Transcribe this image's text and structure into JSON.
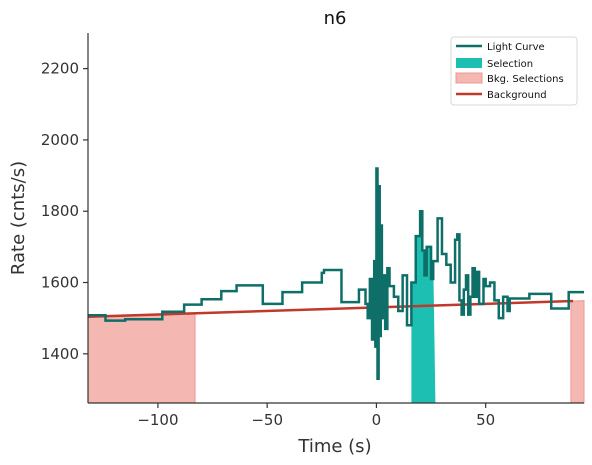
{
  "chart_data": {
    "type": "line",
    "title": "n6",
    "xlabel": "Time (s)",
    "ylabel": "Rate (cnts/s)",
    "xlim": [
      -132,
      95
    ],
    "ylim": [
      1262,
      2300
    ],
    "xticks": [
      -100,
      -50,
      0,
      50
    ],
    "yticks": [
      1400,
      1600,
      1800,
      2000,
      2200
    ],
    "xtick_labels": [
      "−100",
      "−50",
      "0",
      "50"
    ],
    "ytick_labels": [
      "1400",
      "1600",
      "1800",
      "2000",
      "2200"
    ],
    "legend": {
      "placement": "top-right",
      "entries": [
        "Light Curve",
        "Selection",
        "Bkg. Selections",
        "Background"
      ]
    },
    "colors": {
      "light_curve": "#0e6e68",
      "selection": "#1dbfb2",
      "bkg_selection_fill": "#f5b7b1",
      "bkg_selection_edge": "#ec9a93",
      "background": "#c0392b",
      "axis": "#333333"
    },
    "grid": false,
    "series": [
      {
        "name": "Light Curve",
        "kind": "step",
        "points": [
          [
            -132,
            1508
          ],
          [
            -124,
            1508
          ],
          [
            -124,
            1493
          ],
          [
            -115,
            1493
          ],
          [
            -115,
            1497
          ],
          [
            -98,
            1497
          ],
          [
            -98,
            1518
          ],
          [
            -88,
            1518
          ],
          [
            -88,
            1538
          ],
          [
            -80,
            1538
          ],
          [
            -80,
            1553
          ],
          [
            -71,
            1553
          ],
          [
            -71,
            1576
          ],
          [
            -64,
            1576
          ],
          [
            -64,
            1592
          ],
          [
            -52,
            1592
          ],
          [
            -52,
            1540
          ],
          [
            -43,
            1540
          ],
          [
            -43,
            1573
          ],
          [
            -34,
            1573
          ],
          [
            -34,
            1600
          ],
          [
            -25,
            1600
          ],
          [
            -25,
            1627
          ],
          [
            -24,
            1627
          ],
          [
            -24,
            1635
          ],
          [
            -16,
            1635
          ],
          [
            -16,
            1545
          ],
          [
            -8,
            1545
          ],
          [
            -8,
            1580
          ],
          [
            -5,
            1580
          ],
          [
            -5,
            1540
          ],
          [
            -4,
            1540
          ],
          [
            -4,
            1500
          ],
          [
            -3,
            1500
          ],
          [
            -3,
            1610
          ],
          [
            -2,
            1610
          ],
          [
            -2,
            1440
          ],
          [
            -1,
            1440
          ],
          [
            -1,
            1660
          ],
          [
            -0.5,
            1660
          ],
          [
            -0.5,
            1420
          ],
          [
            0,
            1420
          ],
          [
            0,
            1920
          ],
          [
            0.5,
            1920
          ],
          [
            0.5,
            1330
          ],
          [
            1,
            1330
          ],
          [
            1,
            1870
          ],
          [
            1.5,
            1870
          ],
          [
            1.5,
            1450
          ],
          [
            2,
            1450
          ],
          [
            2,
            1760
          ],
          [
            2.5,
            1760
          ],
          [
            2.5,
            1500
          ],
          [
            3,
            1500
          ],
          [
            3,
            1620
          ],
          [
            4,
            1620
          ],
          [
            4,
            1470
          ],
          [
            5,
            1470
          ],
          [
            5,
            1640
          ],
          [
            6,
            1640
          ],
          [
            6,
            1590
          ],
          [
            8,
            1590
          ],
          [
            8,
            1560
          ],
          [
            10,
            1560
          ],
          [
            10,
            1520
          ],
          [
            12,
            1520
          ],
          [
            12,
            1620
          ],
          [
            14,
            1620
          ],
          [
            14,
            1480
          ],
          [
            16,
            1480
          ],
          [
            16,
            1600
          ],
          [
            18,
            1600
          ],
          [
            18,
            1730
          ],
          [
            20,
            1730
          ],
          [
            20,
            1800
          ],
          [
            21,
            1800
          ],
          [
            21,
            1690
          ],
          [
            22,
            1690
          ],
          [
            22,
            1620
          ],
          [
            23,
            1620
          ],
          [
            23,
            1700
          ],
          [
            25,
            1700
          ],
          [
            25,
            1610
          ],
          [
            26,
            1610
          ],
          [
            26,
            1660
          ],
          [
            28,
            1660
          ],
          [
            28,
            1780
          ],
          [
            30,
            1780
          ],
          [
            30,
            1680
          ],
          [
            32,
            1680
          ],
          [
            32,
            1650
          ],
          [
            34,
            1650
          ],
          [
            34,
            1600
          ],
          [
            36,
            1600
          ],
          [
            36,
            1720
          ],
          [
            37,
            1720
          ],
          [
            37,
            1735
          ],
          [
            38,
            1735
          ],
          [
            38,
            1550
          ],
          [
            39,
            1550
          ],
          [
            39,
            1510
          ],
          [
            40,
            1510
          ],
          [
            40,
            1580
          ],
          [
            41,
            1580
          ],
          [
            41,
            1620
          ],
          [
            42,
            1620
          ],
          [
            42,
            1510
          ],
          [
            43,
            1510
          ],
          [
            43,
            1560
          ],
          [
            44,
            1560
          ],
          [
            44,
            1640
          ],
          [
            45,
            1640
          ],
          [
            45,
            1560
          ],
          [
            46,
            1560
          ],
          [
            46,
            1630
          ],
          [
            47,
            1630
          ],
          [
            47,
            1540
          ],
          [
            49,
            1540
          ],
          [
            49,
            1610
          ],
          [
            50,
            1610
          ],
          [
            50,
            1590
          ],
          [
            52,
            1590
          ],
          [
            52,
            1600
          ],
          [
            54,
            1600
          ],
          [
            54,
            1550
          ],
          [
            56,
            1550
          ],
          [
            56,
            1500
          ],
          [
            58,
            1500
          ],
          [
            58,
            1560
          ],
          [
            60,
            1560
          ],
          [
            60,
            1520
          ],
          [
            61,
            1520
          ],
          [
            61,
            1555
          ],
          [
            70,
            1555
          ],
          [
            70,
            1568
          ],
          [
            80,
            1568
          ],
          [
            80,
            1527
          ],
          [
            88,
            1527
          ],
          [
            88,
            1573
          ],
          [
            95,
            1573
          ]
        ]
      },
      {
        "name": "Background",
        "kind": "line",
        "points": [
          [
            -132,
            1504
          ],
          [
            90,
            1548
          ]
        ]
      }
    ],
    "selection": {
      "name": "Selection",
      "x_range": [
        16,
        27
      ]
    },
    "bkg_selections": {
      "name": "Bkg. Selections",
      "ranges": [
        [
          -132,
          -83
        ],
        [
          89,
          95
        ]
      ]
    }
  }
}
